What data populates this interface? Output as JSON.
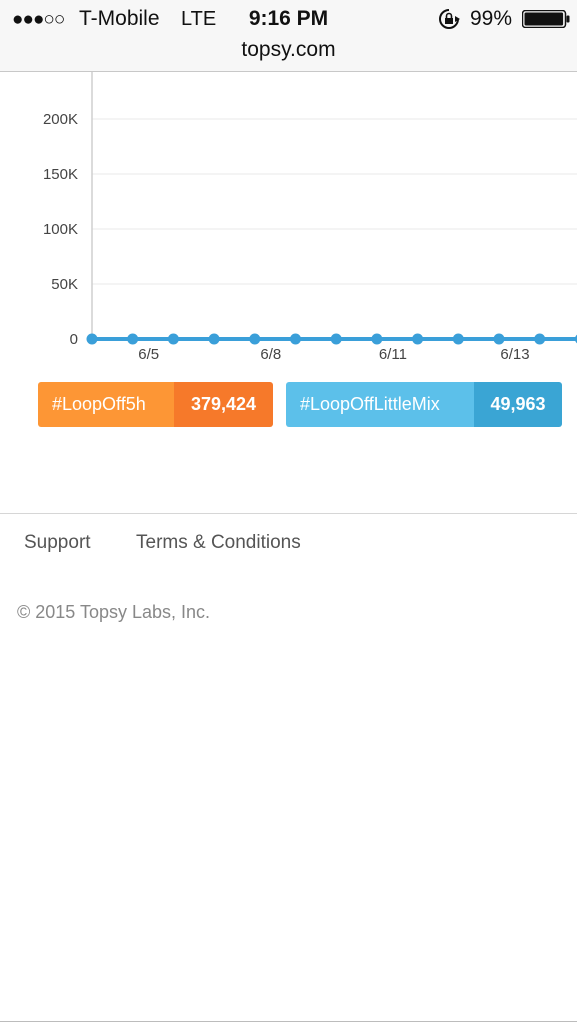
{
  "status_bar": {
    "signal": "●●●○○",
    "carrier": "T-Mobile",
    "network": "LTE",
    "time": "9:16 PM",
    "battery_percent": "99%",
    "battery_level": 0.99,
    "url": "topsy.com"
  },
  "chart_data": {
    "type": "line",
    "title": "",
    "xlabel": "",
    "ylabel": "",
    "ylim": [
      0,
      200000
    ],
    "y_ticks": [
      {
        "value": 0,
        "label": "0"
      },
      {
        "value": 50000,
        "label": "50K"
      },
      {
        "value": 100000,
        "label": "100K"
      },
      {
        "value": 150000,
        "label": "150K"
      },
      {
        "value": 200000,
        "label": "200K"
      }
    ],
    "x_ticks": [
      {
        "index": 1,
        "label": "6/5"
      },
      {
        "index": 4,
        "label": "6/8"
      },
      {
        "index": 7,
        "label": "6/11"
      },
      {
        "index": 10,
        "label": "6/13"
      }
    ],
    "grid": true,
    "series": [
      {
        "color": "#3a9fd9",
        "values": [
          0,
          0,
          0,
          0,
          0,
          0,
          0,
          0,
          0,
          0,
          0,
          0,
          0
        ]
      }
    ]
  },
  "hashtags": [
    {
      "tag": "#LoopOff5h",
      "count": "379,424",
      "color": "#fd9635"
    },
    {
      "tag": "#LoopOffLittleMix",
      "count": "49,963",
      "color": "#5cc0ea"
    }
  ],
  "footer": {
    "support": "Support",
    "terms": "Terms & Conditions",
    "copyright": "© 2015 Topsy Labs, Inc."
  }
}
